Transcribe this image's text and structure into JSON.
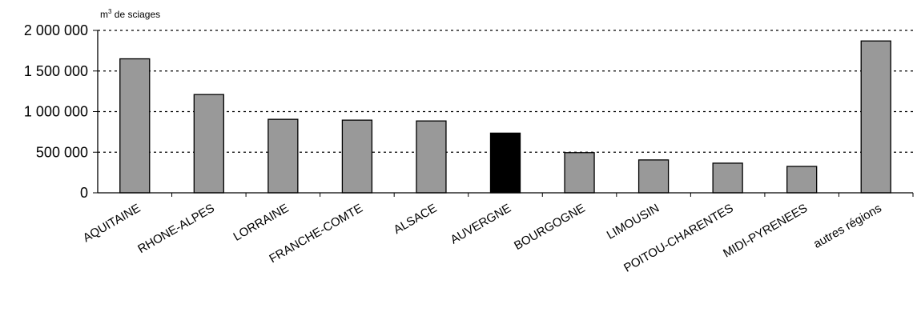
{
  "chart_data": {
    "type": "bar",
    "ylabel": {
      "base": "m",
      "sup": "3",
      "rest": " de sciages"
    },
    "ylim": [
      0,
      2000000
    ],
    "yticks": [
      0,
      500000,
      1000000,
      1500000,
      2000000
    ],
    "ytick_labels": [
      "0",
      "500 000",
      "1 000 000",
      "1 500 000",
      "2 000 000"
    ],
    "grid": true,
    "categories": [
      "AQUITAINE",
      "RHONE-ALPES",
      "LORRAINE",
      "FRANCHE-COMTE",
      "ALSACE",
      "AUVERGNE",
      "BOURGOGNE",
      "LIMOUSIN",
      "POITOU-CHARENTES",
      "MIDI-PYRENEES",
      "autres régions"
    ],
    "values": [
      1650000,
      1210000,
      905000,
      895000,
      885000,
      735000,
      495000,
      405000,
      365000,
      325000,
      1870000
    ],
    "colors": {
      "default": "#999999",
      "highlight": "#000000",
      "highlight_category": "AUVERGNE",
      "grid": "#000000"
    }
  }
}
